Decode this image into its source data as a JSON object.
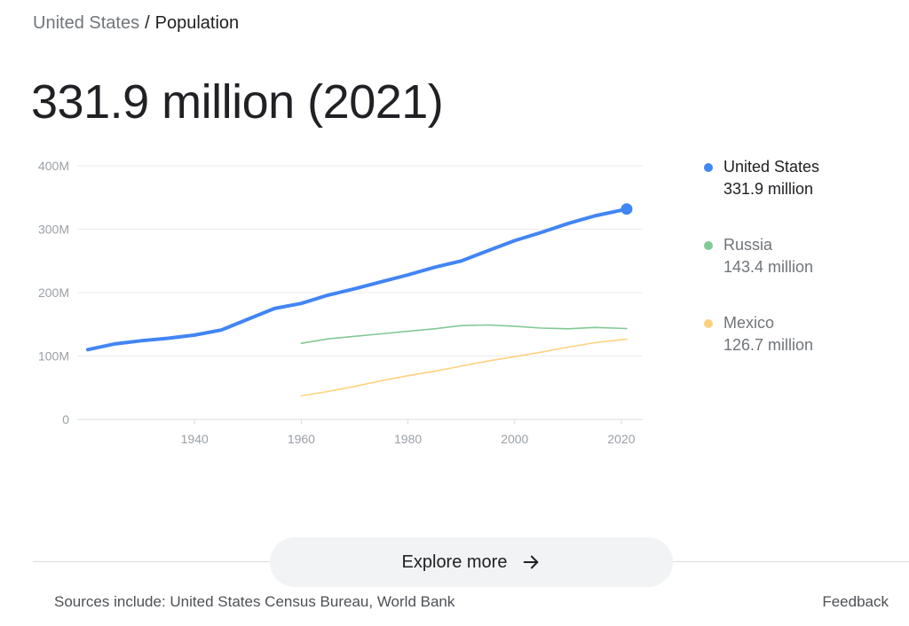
{
  "breadcrumb": {
    "parent": "United States",
    "separator": "/",
    "current": "Population"
  },
  "headline": "331.9 million (2021)",
  "legend": [
    {
      "name": "United States",
      "value": "331.9 million",
      "color": "#4285f4"
    },
    {
      "name": "Russia",
      "value": "143.4 million",
      "color": "#81c995"
    },
    {
      "name": "Mexico",
      "value": "126.7 million",
      "color": "#fdd27e"
    }
  ],
  "explore_label": "Explore more",
  "sources": "Sources include: United States Census Bureau, World Bank",
  "feedback": "Feedback",
  "chart_data": {
    "type": "line",
    "title": "",
    "xlabel": "",
    "ylabel": "",
    "xlim": [
      1918,
      2024
    ],
    "ylim": [
      0,
      400
    ],
    "y_ticks": [
      {
        "value": 0,
        "label": "0"
      },
      {
        "value": 100,
        "label": "100M"
      },
      {
        "value": 200,
        "label": "200M"
      },
      {
        "value": 300,
        "label": "300M"
      },
      {
        "value": 400,
        "label": "400M"
      }
    ],
    "x_ticks": [
      {
        "value": 1940,
        "label": "1940"
      },
      {
        "value": 1960,
        "label": "1960"
      },
      {
        "value": 1980,
        "label": "1980"
      },
      {
        "value": 2000,
        "label": "2000"
      },
      {
        "value": 2020,
        "label": "2020"
      }
    ],
    "series": [
      {
        "name": "United States",
        "color": "#4285f4",
        "highlight_last": true,
        "x": [
          1920,
          1925,
          1930,
          1935,
          1940,
          1945,
          1950,
          1955,
          1960,
          1965,
          1970,
          1975,
          1980,
          1985,
          1990,
          1995,
          2000,
          2005,
          2010,
          2015,
          2020,
          2021
        ],
        "values": [
          110,
          119,
          124,
          128,
          133,
          141,
          158,
          175,
          183,
          196,
          206,
          217,
          228,
          240,
          250,
          266,
          282,
          295,
          309,
          321,
          330,
          331.9
        ]
      },
      {
        "name": "Russia",
        "color": "#81c995",
        "x": [
          1960,
          1965,
          1970,
          1975,
          1980,
          1985,
          1990,
          1995,
          2000,
          2005,
          2010,
          2015,
          2021
        ],
        "values": [
          120,
          127,
          131,
          135,
          139,
          143,
          148,
          149,
          147,
          144,
          143,
          145,
          143.4
        ]
      },
      {
        "name": "Mexico",
        "color": "#fdd27e",
        "x": [
          1960,
          1965,
          1970,
          1975,
          1980,
          1985,
          1990,
          1995,
          2000,
          2005,
          2010,
          2015,
          2021
        ],
        "values": [
          37,
          44,
          52,
          61,
          69,
          76,
          84,
          92,
          99,
          106,
          114,
          121,
          126.7
        ]
      }
    ]
  }
}
